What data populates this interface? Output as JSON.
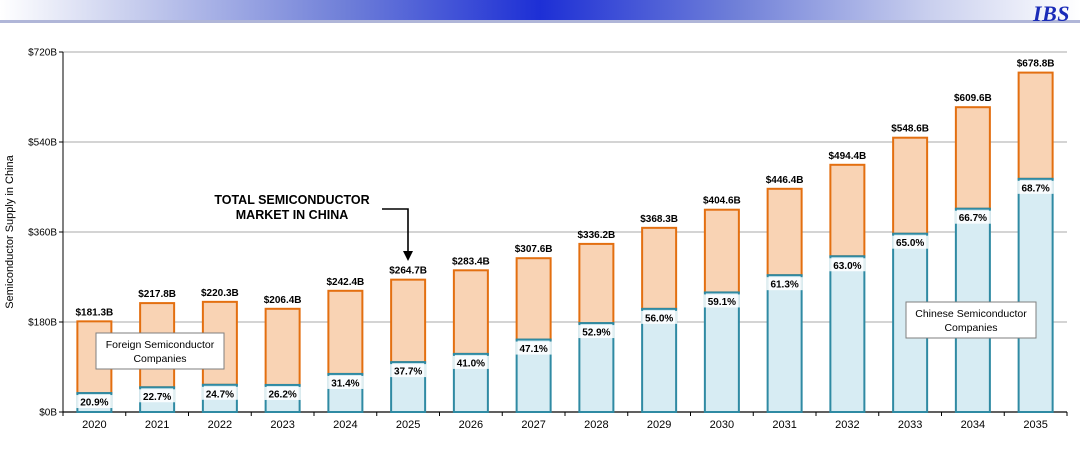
{
  "header": {
    "brand": "IBS"
  },
  "colors": {
    "foreign_fill": "#f9d3b4",
    "foreign_stroke": "#e36f10",
    "chinese_fill": "#d7ecf3",
    "chinese_stroke": "#2f8aa3"
  },
  "chart_data": {
    "type": "bar",
    "stacked": true,
    "title": "",
    "xlabel": "",
    "ylabel": "Semiconductor Supply in China",
    "ylim": [
      0,
      720
    ],
    "yticks": [
      "$0B",
      "$180B",
      "$360B",
      "$540B",
      "$720B"
    ],
    "ytick_values": [
      0,
      180,
      360,
      540,
      720
    ],
    "categories": [
      "2020",
      "2021",
      "2022",
      "2023",
      "2024",
      "2025",
      "2026",
      "2027",
      "2028",
      "2029",
      "2030",
      "2031",
      "2032",
      "2033",
      "2034",
      "2035"
    ],
    "totals": [
      181.3,
      217.8,
      220.3,
      206.4,
      242.4,
      264.7,
      283.4,
      307.6,
      336.2,
      368.3,
      404.6,
      446.4,
      494.4,
      548.6,
      609.6,
      678.8
    ],
    "total_labels": [
      "$181.3B",
      "$217.8B",
      "$220.3B",
      "$206.4B",
      "$242.4B",
      "$264.7B",
      "$283.4B",
      "$307.6B",
      "$336.2B",
      "$368.3B",
      "$404.6B",
      "$446.4B",
      "$494.4B",
      "$548.6B",
      "$609.6B",
      "$678.8B"
    ],
    "chinese_share_pct": [
      20.9,
      22.7,
      24.7,
      26.2,
      31.4,
      37.7,
      41.0,
      47.1,
      52.9,
      56.0,
      59.1,
      61.3,
      63.0,
      65.0,
      66.7,
      68.7
    ],
    "share_labels": [
      "20.9%",
      "22.7%",
      "24.7%",
      "26.2%",
      "31.4%",
      "37.7%",
      "41.0%",
      "47.1%",
      "52.9%",
      "56.0%",
      "59.1%",
      "61.3%",
      "63.0%",
      "65.0%",
      "66.7%",
      "68.7%"
    ],
    "series": [
      {
        "name": "Chinese Semiconductor Companies"
      },
      {
        "name": "Foreign Semiconductor Companies"
      }
    ],
    "legend": {
      "foreign_line1": "Foreign Semiconductor",
      "foreign_line2": "Companies",
      "chinese_line1": "Chinese Semiconductor",
      "chinese_line2": "Companies"
    },
    "annotation": {
      "line1": "TOTAL SEMICONDUCTOR",
      "line2": "MARKET IN CHINA",
      "target_category": "2025"
    },
    "grid": true
  }
}
